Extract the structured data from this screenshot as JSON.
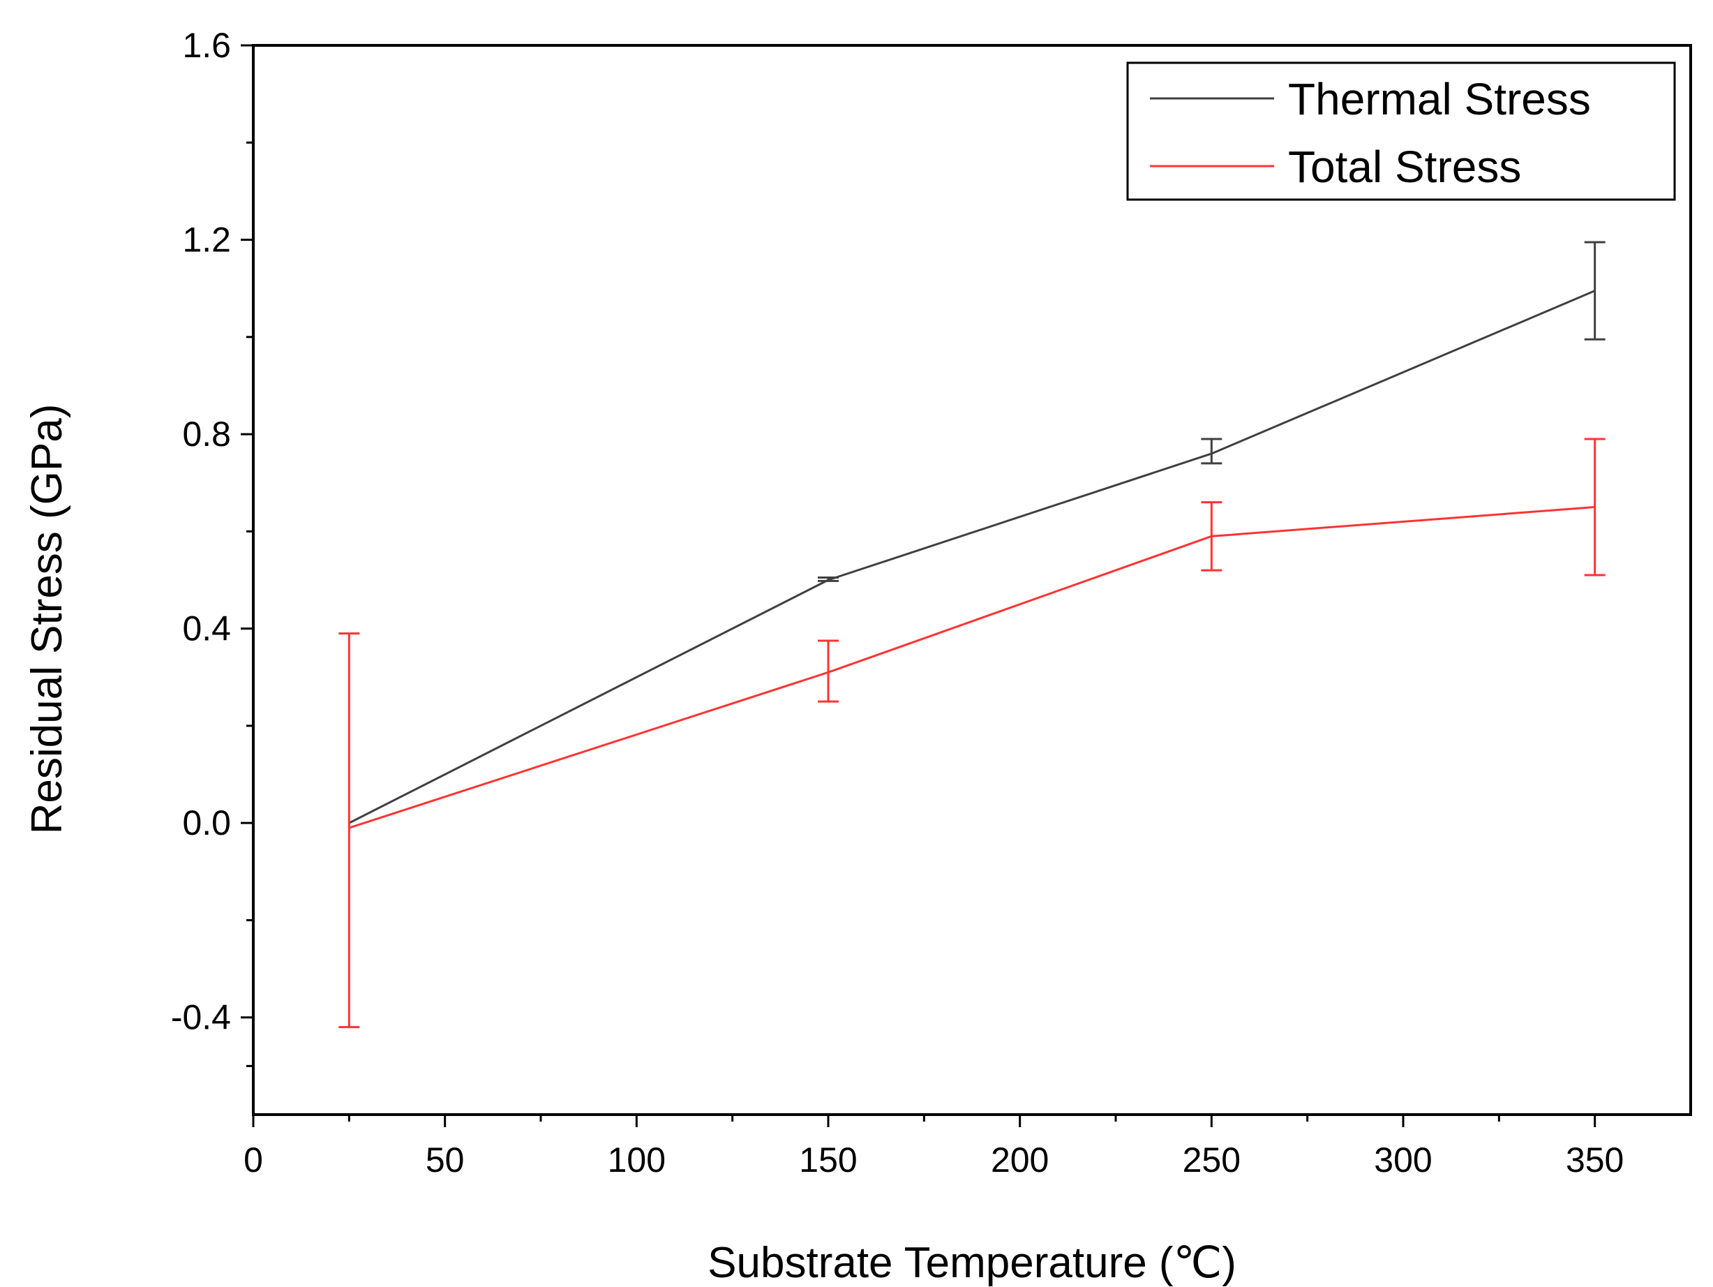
{
  "chart_data": {
    "type": "line",
    "title": "",
    "xlabel": "Substrate Temperature (℃)",
    "ylabel": "Residual Stress (GPa)",
    "xlim": [
      0,
      375
    ],
    "ylim": [
      -0.6,
      1.6
    ],
    "x_ticks": [
      0,
      50,
      100,
      150,
      200,
      250,
      300,
      350
    ],
    "x_tick_labels": [
      "0",
      "50",
      "100",
      "150",
      "200",
      "250",
      "300",
      "350"
    ],
    "y_ticks": [
      -0.4,
      0.0,
      0.4,
      0.8,
      1.2,
      1.6
    ],
    "y_tick_labels": [
      "-0.4",
      "0.0",
      "0.4",
      "0.8",
      "1.2",
      "1.6"
    ],
    "grid": false,
    "legend_position": "top-right",
    "series": [
      {
        "name": "Thermal Stress",
        "color": "#404040",
        "x": [
          25,
          150,
          250,
          350
        ],
        "values": [
          0.0,
          0.5,
          0.76,
          1.095
        ],
        "error_lower": [
          0.0,
          0.002,
          0.02,
          0.1
        ],
        "error_upper": [
          0.0,
          0.005,
          0.03,
          0.1
        ]
      },
      {
        "name": "Total Stress",
        "color": "#ff3333",
        "x": [
          25,
          150,
          250,
          350
        ],
        "values": [
          -0.01,
          0.31,
          0.59,
          0.65
        ],
        "error_lower": [
          0.41,
          0.06,
          0.07,
          0.14
        ],
        "error_upper": [
          0.4,
          0.065,
          0.07,
          0.14
        ]
      }
    ]
  }
}
